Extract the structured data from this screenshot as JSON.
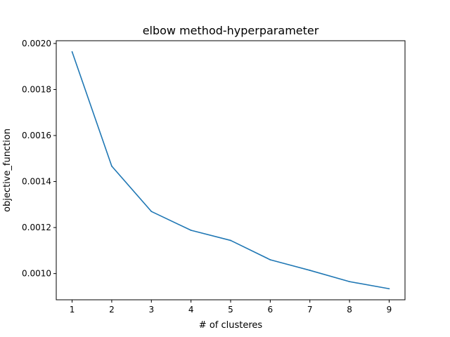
{
  "chart_data": {
    "type": "line",
    "title": "elbow method-hyperparameter",
    "xlabel": "# of clusteres",
    "ylabel": "objective_function",
    "x": [
      1,
      2,
      3,
      4,
      5,
      6,
      7,
      8,
      9
    ],
    "series": [
      {
        "values": [
          0.001964,
          0.001467,
          0.00127,
          0.001188,
          0.001144,
          0.00106,
          0.001014,
          0.000965,
          0.000934
        ],
        "color": "#1f77b4"
      }
    ],
    "xticks": [
      1,
      2,
      3,
      4,
      5,
      6,
      7,
      8,
      9
    ],
    "xtick_labels": [
      "1",
      "2",
      "3",
      "4",
      "5",
      "6",
      "7",
      "8",
      "9"
    ],
    "yticks": [
      0.001,
      0.0012,
      0.0014,
      0.0016,
      0.0018,
      0.002
    ],
    "ytick_labels": [
      "0.0010",
      "0.0012",
      "0.0014",
      "0.0016",
      "0.0018",
      "0.0020"
    ],
    "xlim": [
      0.6,
      9.4
    ],
    "ylim": [
      0.000886,
      0.002012
    ],
    "grid": false,
    "legend": "none"
  }
}
